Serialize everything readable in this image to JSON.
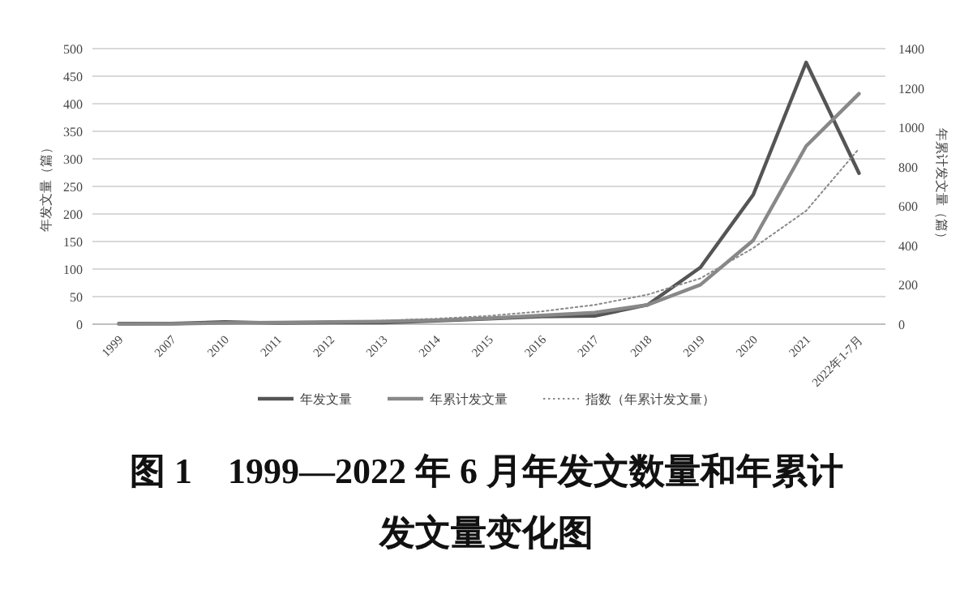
{
  "chart_data": {
    "type": "line",
    "title": "图 1　1999—2022 年 6 月年发文数量和年累计发文量变化图",
    "ylabel": "年发文量（篇）",
    "y2label": "年累计发文量（篇）",
    "categories": [
      "1999",
      "2007",
      "2010",
      "2011",
      "2012",
      "2013",
      "2014",
      "2015",
      "2016",
      "2017",
      "2018",
      "2019",
      "2020",
      "2021",
      "2022年1-7月"
    ],
    "series": [
      {
        "name": "年发文量",
        "color": "#555555",
        "line_style": "solid",
        "values": [
          1,
          1,
          4,
          2,
          3,
          3,
          6,
          10,
          14,
          15,
          35,
          103,
          235,
          475,
          274
        ]
      },
      {
        "name": "年累计发文量",
        "color": "#888888",
        "line_style": "solid",
        "axis": "y2",
        "values": [
          1,
          2,
          6,
          8,
          11,
          14,
          20,
          30,
          44,
          59,
          98,
          200,
          426,
          905,
          1171
        ]
      },
      {
        "name": "指数（年累计发文量）",
        "type": "line",
        "color": "#888888",
        "line_style": "dotted",
        "axis": "y2",
        "values": [
          2,
          3.5,
          5,
          8,
          12,
          18,
          28,
          42,
          65,
          98,
          150,
          233,
          387,
          576,
          892
        ]
      }
    ],
    "ylim": [
      0,
      500
    ],
    "yticks": [
      0,
      50,
      100,
      150,
      200,
      250,
      300,
      350,
      400,
      450,
      500
    ],
    "y2lim": [
      0,
      1400
    ],
    "y2ticks": [
      0,
      200,
      400,
      600,
      800,
      1000,
      1200,
      1400
    ],
    "grid": "y",
    "legend": "bottom"
  }
}
